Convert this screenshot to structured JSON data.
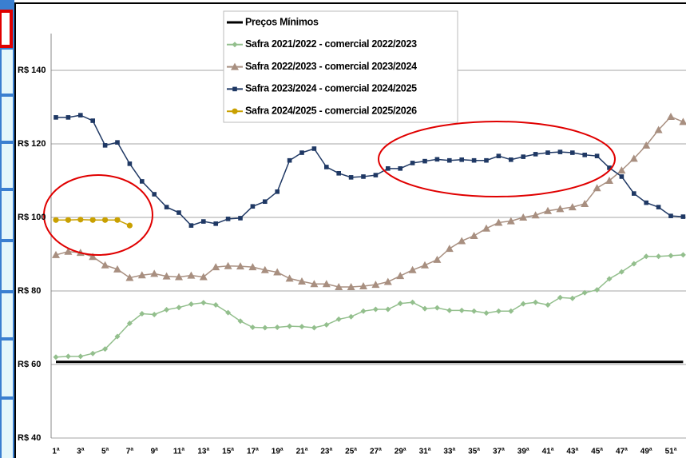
{
  "chart_data": {
    "type": "line",
    "categories": [
      "1ª",
      null,
      "3ª",
      null,
      "5ª",
      null,
      "7ª",
      null,
      "9ª",
      null,
      "11ª",
      null,
      "13ª",
      null,
      "15ª",
      null,
      "17ª",
      null,
      "19ª",
      null,
      "21ª",
      null,
      "23ª",
      null,
      "25ª",
      null,
      "27ª",
      null,
      "29ª",
      null,
      "31ª",
      null,
      "33ª",
      null,
      "35ª",
      null,
      "37ª",
      null,
      "39ª",
      null,
      "41ª",
      null,
      "43ª",
      null,
      "45ª",
      null,
      "47ª",
      null,
      "49ª",
      null,
      "51ª",
      null
    ],
    "series": [
      {
        "name": "Preços Mínimos",
        "color": "#000000",
        "marker": "none",
        "width": 3,
        "values": [
          60.7,
          60.7,
          60.7,
          60.7,
          60.7,
          60.7,
          60.7,
          60.7,
          60.7,
          60.7,
          60.7,
          60.7,
          60.7,
          60.7,
          60.7,
          60.7,
          60.7,
          60.7,
          60.7,
          60.7,
          60.7,
          60.7,
          60.7,
          60.7,
          60.7,
          60.7,
          60.7,
          60.7,
          60.7,
          60.7,
          60.7,
          60.7,
          60.7,
          60.7,
          60.7,
          60.7,
          60.7,
          60.7,
          60.7,
          60.7,
          60.7,
          60.7,
          60.7,
          60.7,
          60.7,
          60.7,
          60.7,
          60.7,
          60.7,
          60.7,
          60.7,
          60.7
        ]
      },
      {
        "name": "Safra 2021/2022 - comercial 2022/2023",
        "color": "#93bf8d",
        "marker": "diamond",
        "width": 1.5,
        "values": [
          62,
          62.2,
          62.2,
          63,
          64.2,
          67.6,
          71.2,
          73.8,
          73.6,
          74.9,
          75.5,
          76.4,
          76.8,
          76.2,
          74.1,
          71.8,
          70.1,
          70,
          70.1,
          70.4,
          70.3,
          70,
          70.8,
          72.3,
          73,
          74.5,
          75,
          75,
          76.6,
          76.9,
          75.2,
          75.4,
          74.7,
          74.7,
          74.5,
          74,
          74.5,
          74.5,
          76.5,
          76.9,
          76.2,
          78.2,
          78,
          79.5,
          80.3,
          83.3,
          85.2,
          87.4,
          89.4,
          89.4,
          89.6,
          89.8
        ]
      },
      {
        "name": "Safra 2022/2023 - comercial 2023/2024",
        "color": "#a88f80",
        "marker": "triangle",
        "width": 1.5,
        "values": [
          89.8,
          90.7,
          90.4,
          89.3,
          87,
          85.9,
          83.6,
          84.3,
          84.7,
          84,
          83.8,
          84.2,
          83.8,
          86.5,
          86.8,
          86.7,
          86.5,
          85.7,
          85.1,
          83.4,
          82.6,
          81.9,
          81.9,
          81.1,
          81.1,
          81.3,
          81.7,
          82.5,
          84.1,
          85.7,
          87,
          88.5,
          91.5,
          93.6,
          95,
          97,
          98.6,
          99,
          100,
          100.6,
          101.8,
          102.3,
          102.8,
          103.7,
          108,
          110,
          112.8,
          116,
          119.6,
          123.8,
          127.4,
          126
        ]
      },
      {
        "name": "Safra 2023/2024 - comercial 2024/2025",
        "color": "#1f3864",
        "marker": "square",
        "width": 1.5,
        "values": [
          127.2,
          127.2,
          127.8,
          126.3,
          119.6,
          120.4,
          114.6,
          109.8,
          106.3,
          102.8,
          101.3,
          97.8,
          98.9,
          98.3,
          99.6,
          99.8,
          103,
          104.3,
          107,
          115.5,
          117.6,
          118.7,
          113.7,
          112,
          110.9,
          111.1,
          111.5,
          113.3,
          113.3,
          114.8,
          115.3,
          115.8,
          115.5,
          115.7,
          115.5,
          115.5,
          116.7,
          115.7,
          116.5,
          117.2,
          117.6,
          117.8,
          117.6,
          117,
          116.7,
          113.5,
          111.1,
          106.5,
          104,
          102.8,
          100.4,
          100.2
        ]
      },
      {
        "name": "Safra 2024/2025 - comercial 2025/2026",
        "color": "#c9a000",
        "marker": "circle",
        "width": 1.5,
        "values": [
          99.3,
          99.3,
          99.4,
          99.3,
          99.3,
          99.3,
          97.8,
          null,
          null,
          null,
          null,
          null,
          null,
          null,
          null,
          null,
          null,
          null,
          null,
          null,
          null,
          null,
          null,
          null,
          null,
          null,
          null,
          null,
          null,
          null,
          null,
          null,
          null,
          null,
          null,
          null,
          null,
          null,
          null,
          null,
          null,
          null,
          null,
          null,
          null,
          null,
          null,
          null,
          null,
          null,
          null,
          null
        ]
      }
    ],
    "ylim": [
      40,
      150
    ],
    "yticks": [
      {
        "value": 40,
        "label": "R$ 40"
      },
      {
        "value": 60,
        "label": "R$ 60"
      },
      {
        "value": 80,
        "label": "R$ 80"
      },
      {
        "value": 100,
        "label": "R$ 100"
      },
      {
        "value": 120,
        "label": "R$ 120"
      },
      {
        "value": 140,
        "label": "R$ 140"
      }
    ],
    "grid": true
  }
}
